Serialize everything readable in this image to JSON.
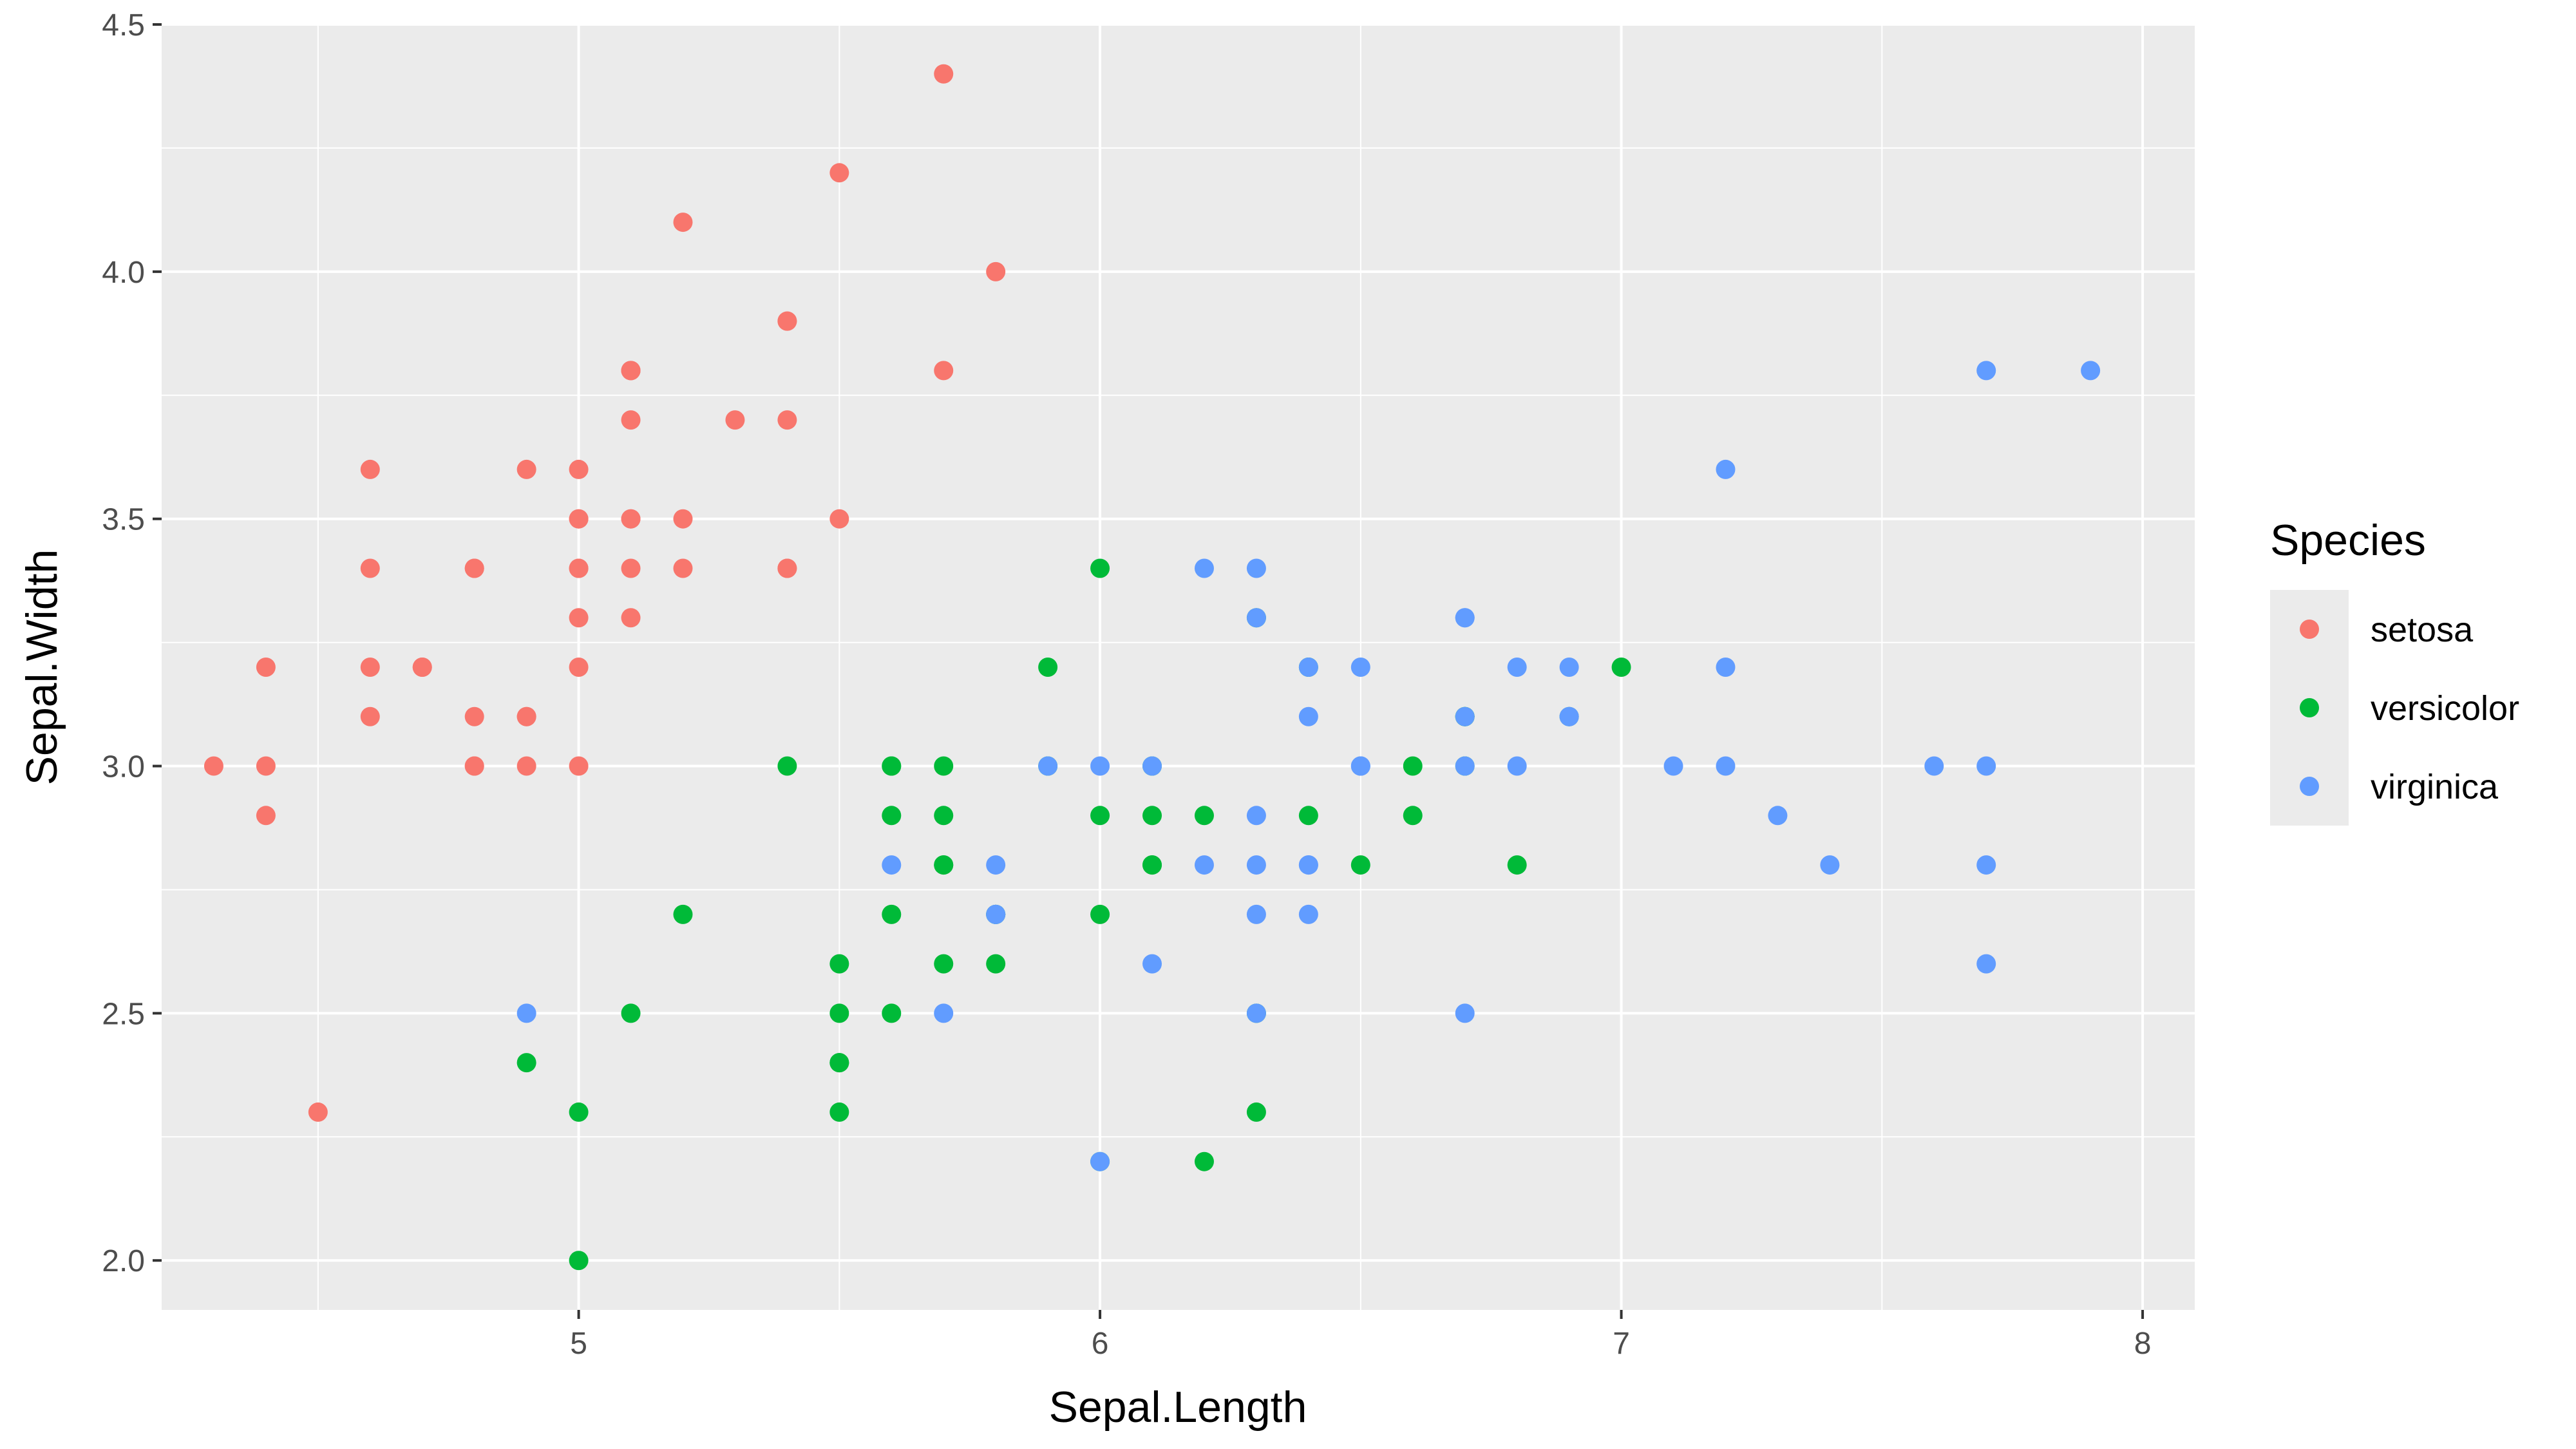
{
  "chart_data": {
    "type": "scatter",
    "xlabel": "Sepal.Length",
    "ylabel": "Sepal.Width",
    "xlim": [
      4.2,
      8.1
    ],
    "ylim": [
      1.9,
      4.5
    ],
    "x_ticks": [
      5,
      6,
      7,
      8
    ],
    "x_tick_labels": [
      "5",
      "6",
      "7",
      "8"
    ],
    "y_ticks": [
      2.0,
      2.5,
      3.0,
      3.5,
      4.0,
      4.5
    ],
    "y_tick_labels": [
      "2.0",
      "2.5",
      "3.0",
      "3.5",
      "4.0",
      "4.5"
    ],
    "grid": true,
    "legend": {
      "title": "Species",
      "position": "right"
    },
    "series": [
      {
        "name": "setosa",
        "color": "#F8766D",
        "points": [
          [
            5.1,
            3.5
          ],
          [
            4.9,
            3.0
          ],
          [
            4.7,
            3.2
          ],
          [
            4.6,
            3.1
          ],
          [
            5.0,
            3.6
          ],
          [
            5.4,
            3.9
          ],
          [
            4.6,
            3.4
          ],
          [
            5.0,
            3.4
          ],
          [
            4.4,
            2.9
          ],
          [
            4.9,
            3.1
          ],
          [
            5.4,
            3.7
          ],
          [
            4.8,
            3.4
          ],
          [
            4.8,
            3.0
          ],
          [
            4.3,
            3.0
          ],
          [
            5.8,
            4.0
          ],
          [
            5.7,
            4.4
          ],
          [
            5.4,
            3.9
          ],
          [
            5.1,
            3.5
          ],
          [
            5.7,
            3.8
          ],
          [
            5.1,
            3.8
          ],
          [
            5.4,
            3.4
          ],
          [
            5.1,
            3.7
          ],
          [
            4.6,
            3.6
          ],
          [
            5.1,
            3.3
          ],
          [
            4.8,
            3.4
          ],
          [
            5.0,
            3.0
          ],
          [
            5.0,
            3.4
          ],
          [
            5.2,
            3.5
          ],
          [
            5.2,
            3.4
          ],
          [
            4.7,
            3.2
          ],
          [
            4.8,
            3.1
          ],
          [
            5.4,
            3.4
          ],
          [
            5.2,
            4.1
          ],
          [
            5.5,
            4.2
          ],
          [
            4.9,
            3.1
          ],
          [
            5.0,
            3.2
          ],
          [
            5.5,
            3.5
          ],
          [
            4.9,
            3.6
          ],
          [
            4.4,
            3.0
          ],
          [
            5.1,
            3.4
          ],
          [
            5.0,
            3.5
          ],
          [
            4.5,
            2.3
          ],
          [
            4.4,
            3.2
          ],
          [
            5.0,
            3.5
          ],
          [
            5.1,
            3.8
          ],
          [
            4.8,
            3.0
          ],
          [
            5.1,
            3.8
          ],
          [
            4.6,
            3.2
          ],
          [
            5.3,
            3.7
          ],
          [
            5.0,
            3.3
          ]
        ]
      },
      {
        "name": "versicolor",
        "color": "#00BA38",
        "points": [
          [
            7.0,
            3.2
          ],
          [
            6.4,
            3.2
          ],
          [
            6.9,
            3.1
          ],
          [
            5.5,
            2.3
          ],
          [
            6.5,
            2.8
          ],
          [
            5.7,
            2.8
          ],
          [
            6.3,
            3.3
          ],
          [
            4.9,
            2.4
          ],
          [
            6.6,
            2.9
          ],
          [
            5.2,
            2.7
          ],
          [
            5.0,
            2.0
          ],
          [
            5.9,
            3.0
          ],
          [
            6.0,
            2.2
          ],
          [
            6.1,
            2.9
          ],
          [
            5.6,
            2.9
          ],
          [
            6.7,
            3.1
          ],
          [
            5.6,
            3.0
          ],
          [
            5.8,
            2.7
          ],
          [
            6.2,
            2.2
          ],
          [
            5.6,
            2.5
          ],
          [
            5.9,
            3.2
          ],
          [
            6.1,
            2.8
          ],
          [
            6.3,
            2.5
          ],
          [
            6.1,
            2.8
          ],
          [
            6.4,
            2.9
          ],
          [
            6.6,
            3.0
          ],
          [
            6.8,
            2.8
          ],
          [
            6.7,
            3.0
          ],
          [
            6.0,
            2.9
          ],
          [
            5.7,
            2.6
          ],
          [
            5.5,
            2.4
          ],
          [
            5.5,
            2.4
          ],
          [
            5.8,
            2.7
          ],
          [
            6.0,
            2.7
          ],
          [
            5.4,
            3.0
          ],
          [
            6.0,
            3.4
          ],
          [
            6.7,
            3.1
          ],
          [
            6.3,
            2.3
          ],
          [
            5.6,
            3.0
          ],
          [
            5.5,
            2.5
          ],
          [
            5.5,
            2.6
          ],
          [
            6.1,
            3.0
          ],
          [
            5.8,
            2.6
          ],
          [
            5.0,
            2.3
          ],
          [
            5.6,
            2.7
          ],
          [
            5.7,
            3.0
          ],
          [
            5.7,
            2.9
          ],
          [
            6.2,
            2.9
          ],
          [
            5.1,
            2.5
          ],
          [
            5.7,
            2.8
          ]
        ]
      },
      {
        "name": "virginica",
        "color": "#619CFF",
        "points": [
          [
            6.3,
            3.3
          ],
          [
            5.8,
            2.7
          ],
          [
            7.1,
            3.0
          ],
          [
            6.3,
            2.9
          ],
          [
            6.5,
            3.0
          ],
          [
            7.6,
            3.0
          ],
          [
            4.9,
            2.5
          ],
          [
            7.3,
            2.9
          ],
          [
            6.7,
            2.5
          ],
          [
            7.2,
            3.6
          ],
          [
            6.5,
            3.2
          ],
          [
            6.4,
            2.7
          ],
          [
            6.8,
            3.0
          ],
          [
            5.7,
            2.5
          ],
          [
            5.8,
            2.8
          ],
          [
            6.4,
            3.2
          ],
          [
            6.5,
            3.0
          ],
          [
            7.7,
            3.8
          ],
          [
            7.7,
            2.6
          ],
          [
            6.0,
            2.2
          ],
          [
            6.9,
            3.2
          ],
          [
            5.6,
            2.8
          ],
          [
            7.7,
            2.8
          ],
          [
            6.3,
            2.7
          ],
          [
            6.7,
            3.3
          ],
          [
            7.2,
            3.2
          ],
          [
            6.2,
            2.8
          ],
          [
            6.1,
            3.0
          ],
          [
            6.4,
            2.8
          ],
          [
            7.2,
            3.0
          ],
          [
            7.4,
            2.8
          ],
          [
            7.9,
            3.8
          ],
          [
            6.4,
            2.8
          ],
          [
            6.3,
            2.8
          ],
          [
            6.1,
            2.6
          ],
          [
            7.7,
            3.0
          ],
          [
            6.3,
            3.4
          ],
          [
            6.4,
            3.1
          ],
          [
            6.0,
            3.0
          ],
          [
            6.9,
            3.1
          ],
          [
            6.7,
            3.1
          ],
          [
            6.9,
            3.1
          ],
          [
            5.8,
            2.7
          ],
          [
            6.8,
            3.2
          ],
          [
            6.7,
            3.3
          ],
          [
            6.7,
            3.0
          ],
          [
            6.3,
            2.5
          ],
          [
            6.5,
            3.0
          ],
          [
            6.2,
            3.4
          ],
          [
            5.9,
            3.0
          ]
        ]
      }
    ]
  }
}
